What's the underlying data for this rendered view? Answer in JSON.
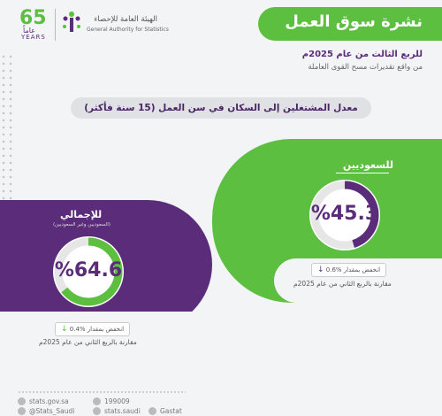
{
  "header": {
    "title": "نشرة سوق العمل",
    "period": "للربع الثالث من عام 2025م",
    "subtitle": "من واقع تقديرات مسح القوى العاملة"
  },
  "logos": {
    "anniversary_number": "65",
    "anniversary_ar": "عاماً",
    "anniversary_en": "YEARS",
    "gastat_ar": "الهيئة العامة للإحصاء",
    "gastat_en": "General Authority for Statistics"
  },
  "section_title": "معدل المشتغلين إلى السكان في سن العمل (15 سنة فأكثر)",
  "saudis": {
    "label": "للسعوديين",
    "value_text": "%45.3",
    "value": 45.3,
    "change_text": "انخفض بمقدار %0.6",
    "comparison": "مقارنة بالربع الثاني من عام 2025م",
    "ring_color": "#5b2c7a"
  },
  "total": {
    "label": "للإجمالي",
    "sublabel": "(السعوديين وغير السعوديين)",
    "value_text": "%64.6",
    "value": 64.6,
    "change_text": "انخفض بمقدار %0.4",
    "comparison": "مقارنة بالربع الثاني من عام 2025م",
    "ring_color": "#5cbf3f"
  },
  "footer": {
    "website": "stats.gov.sa",
    "phone": "199009",
    "twitter": "@Stats_Saudi",
    "facebook": "stats.saudi",
    "linkedin": "Gastat"
  },
  "colors": {
    "green": "#5cbf3f",
    "purple": "#5b2c7a"
  }
}
